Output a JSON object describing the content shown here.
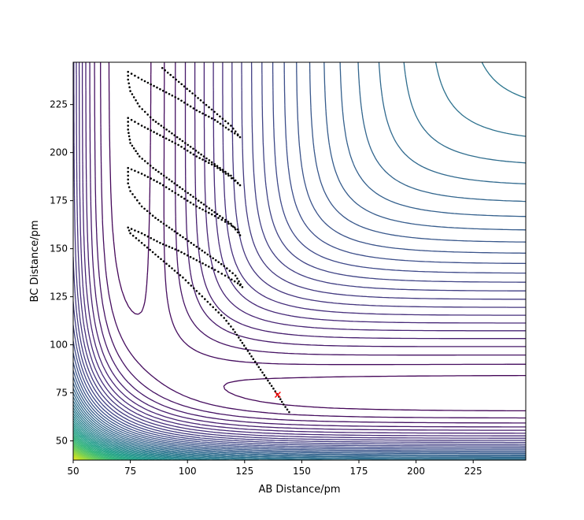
{
  "chart_data": {
    "type": "contour",
    "title": "",
    "xlabel": "AB Distance/pm",
    "ylabel": "BC Distance/pm",
    "xlim": [
      50,
      248
    ],
    "ylim": [
      40,
      247
    ],
    "xticks": [
      50,
      75,
      100,
      125,
      150,
      175,
      200,
      225
    ],
    "yticks": [
      50,
      75,
      100,
      125,
      150,
      175,
      200,
      225
    ],
    "colormap": "viridis",
    "grid": false,
    "legend": "none",
    "colors": {
      "axis": "#000000",
      "trajectory": "#000000",
      "transition_marker": "#ff0000",
      "contour_low": "#440154",
      "contour_high": "#fde725"
    },
    "contour_levels": 60,
    "series": [
      {
        "type": "scatter-path",
        "points": [
          [
            144.5,
            65
          ],
          [
            142,
            69
          ],
          [
            140,
            73
          ],
          [
            136,
            80
          ],
          [
            132,
            87
          ],
          [
            128,
            94
          ],
          [
            124,
            101
          ],
          [
            120,
            108
          ],
          [
            116,
            114
          ],
          [
            110,
            121
          ],
          [
            104,
            128
          ],
          [
            98,
            135
          ],
          [
            92,
            141
          ],
          [
            86,
            147
          ],
          [
            80,
            153
          ],
          [
            75,
            158
          ],
          [
            74,
            161
          ],
          [
            80,
            158
          ],
          [
            88,
            153
          ],
          [
            96,
            149
          ],
          [
            104,
            144
          ],
          [
            112,
            139
          ],
          [
            118,
            135
          ],
          [
            122,
            132
          ],
          [
            124,
            130
          ],
          [
            121,
            136
          ],
          [
            116,
            141
          ],
          [
            110,
            146
          ],
          [
            104,
            151
          ],
          [
            98,
            156
          ],
          [
            92,
            161
          ],
          [
            86,
            166
          ],
          [
            80,
            172
          ],
          [
            75,
            180
          ],
          [
            74,
            184
          ],
          [
            74,
            188
          ],
          [
            74,
            192
          ],
          [
            80,
            189
          ],
          [
            88,
            184
          ],
          [
            96,
            178
          ],
          [
            104,
            172
          ],
          [
            112,
            167
          ],
          [
            118,
            163
          ],
          [
            122,
            160
          ],
          [
            123,
            157
          ],
          [
            119,
            163
          ],
          [
            113,
            168
          ],
          [
            106,
            174
          ],
          [
            99,
            180
          ],
          [
            92,
            186
          ],
          [
            85,
            192
          ],
          [
            79,
            198
          ],
          [
            75,
            205
          ],
          [
            74,
            212
          ],
          [
            74,
            218
          ],
          [
            80,
            214
          ],
          [
            88,
            209
          ],
          [
            96,
            204
          ],
          [
            104,
            198
          ],
          [
            112,
            193
          ],
          [
            118,
            188
          ],
          [
            122,
            184
          ],
          [
            123,
            183
          ],
          [
            119,
            188
          ],
          [
            113,
            193
          ],
          [
            106,
            199
          ],
          [
            99,
            205
          ],
          [
            92,
            211
          ],
          [
            85,
            217
          ],
          [
            79,
            224
          ],
          [
            75,
            232
          ],
          [
            74,
            238
          ],
          [
            74,
            242
          ],
          [
            80,
            238
          ],
          [
            88,
            233
          ],
          [
            96,
            228
          ],
          [
            104,
            222
          ],
          [
            112,
            217
          ],
          [
            118,
            212
          ],
          [
            122,
            209
          ],
          [
            123,
            208
          ],
          [
            119,
            214
          ],
          [
            113,
            220
          ],
          [
            107,
            226
          ],
          [
            101,
            232
          ],
          [
            95,
            238
          ],
          [
            89,
            244
          ]
        ]
      },
      {
        "type": "marker",
        "marker": "x",
        "points": [
          [
            139.5,
            74
          ]
        ]
      }
    ]
  }
}
